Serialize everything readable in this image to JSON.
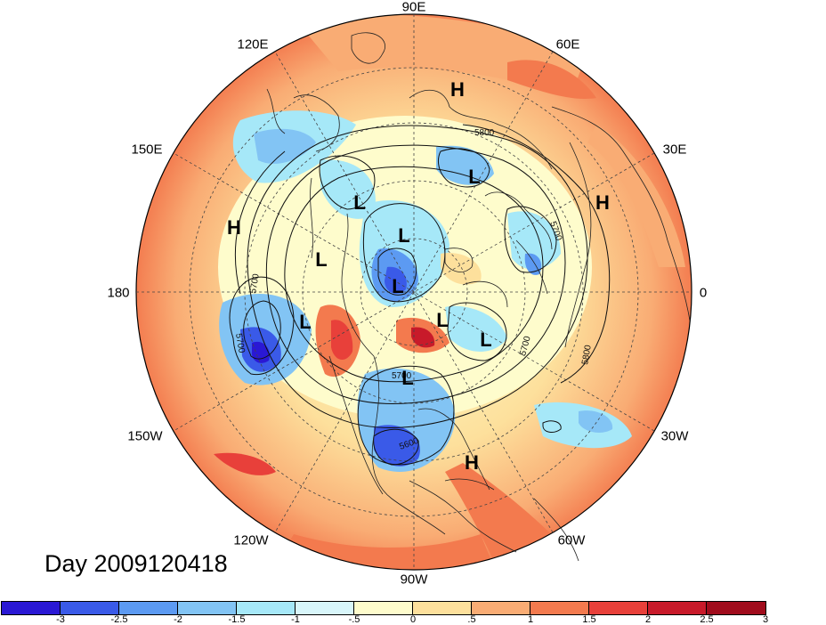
{
  "title": "Day 2009120418",
  "longitude_labels": {
    "north": "90E",
    "ne1": "60E",
    "ne2": "30E",
    "east": "0",
    "se1": "30W",
    "se2": "60W",
    "south": "90W",
    "sw1": "120W",
    "sw2": "150W",
    "west": "180",
    "nw1": "150E",
    "nw2": "120E"
  },
  "contour_labels": [
    "5800",
    "5700",
    "5700",
    "5700",
    "5700",
    "5800",
    "5700",
    "5600"
  ],
  "pressure_centers": [
    {
      "label": "H",
      "position": "north-east Siberia"
    },
    {
      "label": "L",
      "position": "Arctic north"
    },
    {
      "label": "L",
      "position": "East Siberian Sea"
    },
    {
      "label": "H",
      "position": "North Pacific"
    },
    {
      "label": "L",
      "position": "Arctic central"
    },
    {
      "label": "L",
      "position": "Arctic north-west"
    },
    {
      "label": "L",
      "position": "Polar cap"
    },
    {
      "label": "L",
      "position": "Gulf of Alaska"
    },
    {
      "label": "L",
      "position": "Greenland"
    },
    {
      "label": "L",
      "position": "Labrador Sea"
    },
    {
      "label": "L",
      "position": "Hudson Bay"
    },
    {
      "label": "H",
      "position": "Europe"
    },
    {
      "label": "H",
      "position": "western Atlantic"
    }
  ],
  "colorbar": {
    "colors": [
      "#2a18d4",
      "#3a5ae8",
      "#5c9af2",
      "#82c4f4",
      "#a6e8f8",
      "#d8f6fa",
      "#fefccc",
      "#fde09c",
      "#f9ac74",
      "#f37a4e",
      "#e8403a",
      "#c81a2a",
      "#a00c1c"
    ],
    "ticks": [
      "-3",
      "-2.5",
      "-2",
      "-1.5",
      "-1",
      "-.5",
      "0",
      ".5",
      "1",
      "1.5",
      "2",
      "2.5",
      "3"
    ]
  }
}
